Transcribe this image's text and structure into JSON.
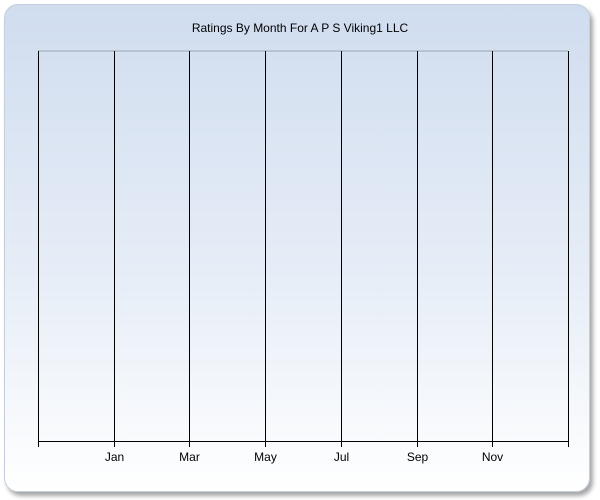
{
  "chart_data": {
    "type": "line",
    "title": "Ratings By Month For A P S Viking1 LLC",
    "xlabel": "",
    "ylabel": "",
    "x_tick_labels": [
      "Jan",
      "Mar",
      "May",
      "Jul",
      "Sep",
      "Nov"
    ],
    "series": [],
    "grid": "vertical",
    "legend": "none"
  }
}
